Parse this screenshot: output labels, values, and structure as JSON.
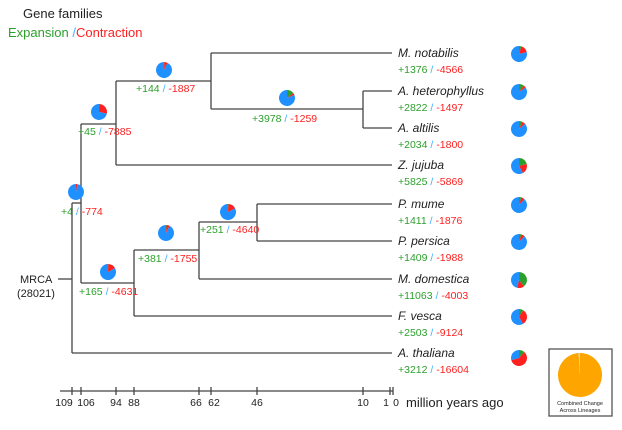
{
  "legend": {
    "title": "Gene families",
    "expansion": "Expansion",
    "sep": "/",
    "contraction": "Contraction"
  },
  "colors": {
    "expansion": "#2ca02c",
    "contraction": "#ff2020",
    "unchanged": "#1e90ff",
    "sep": "#40b0ff",
    "combined": "#ffa500",
    "line": "#444444"
  },
  "total_families": 28021,
  "root": {
    "label": "MRCA",
    "count": "(28021)"
  },
  "leaves": [
    {
      "name": "M. notabilis",
      "exp": "+1376",
      "con": "-4566"
    },
    {
      "name": "A. heterophyllus",
      "exp": "+2822",
      "con": "-1497"
    },
    {
      "name": "A. altilis",
      "exp": "+2034",
      "con": "-1800"
    },
    {
      "name": "Z. jujuba",
      "exp": "+5825",
      "con": "-5869"
    },
    {
      "name": "P. mume",
      "exp": "+1411",
      "con": "-1876"
    },
    {
      "name": "P. persica",
      "exp": "+1409",
      "con": "-1988"
    },
    {
      "name": "M. domestica",
      "exp": "+11063",
      "con": "-4003"
    },
    {
      "name": "F. vesca",
      "exp": "+2503",
      "con": "-9124"
    },
    {
      "name": "A. thaliana",
      "exp": "+3212",
      "con": "-16604"
    }
  ],
  "internal_nodes": [
    {
      "age": 106,
      "exp": "+4",
      "con": "-774"
    },
    {
      "age": 94,
      "exp": "+45",
      "con": "-7885"
    },
    {
      "age": 62,
      "exp": "+144",
      "con": "-1887"
    },
    {
      "age": 10,
      "exp": "+3978",
      "con": "-1259"
    },
    {
      "age": 88,
      "exp": "+165",
      "con": "-4631"
    },
    {
      "age": 66,
      "exp": "+381",
      "con": "-1755"
    },
    {
      "age": 46,
      "exp": "+251",
      "con": "-4640"
    }
  ],
  "axis": {
    "ticks": [
      "109",
      "106",
      "94",
      "88",
      "66",
      "62",
      "46",
      "10",
      "1",
      "0"
    ],
    "unit": "million years ago"
  },
  "combined_legend": {
    "line1": "Combined Change",
    "line2": "Across Lineages",
    "unchanged_fraction": 0.01
  }
}
